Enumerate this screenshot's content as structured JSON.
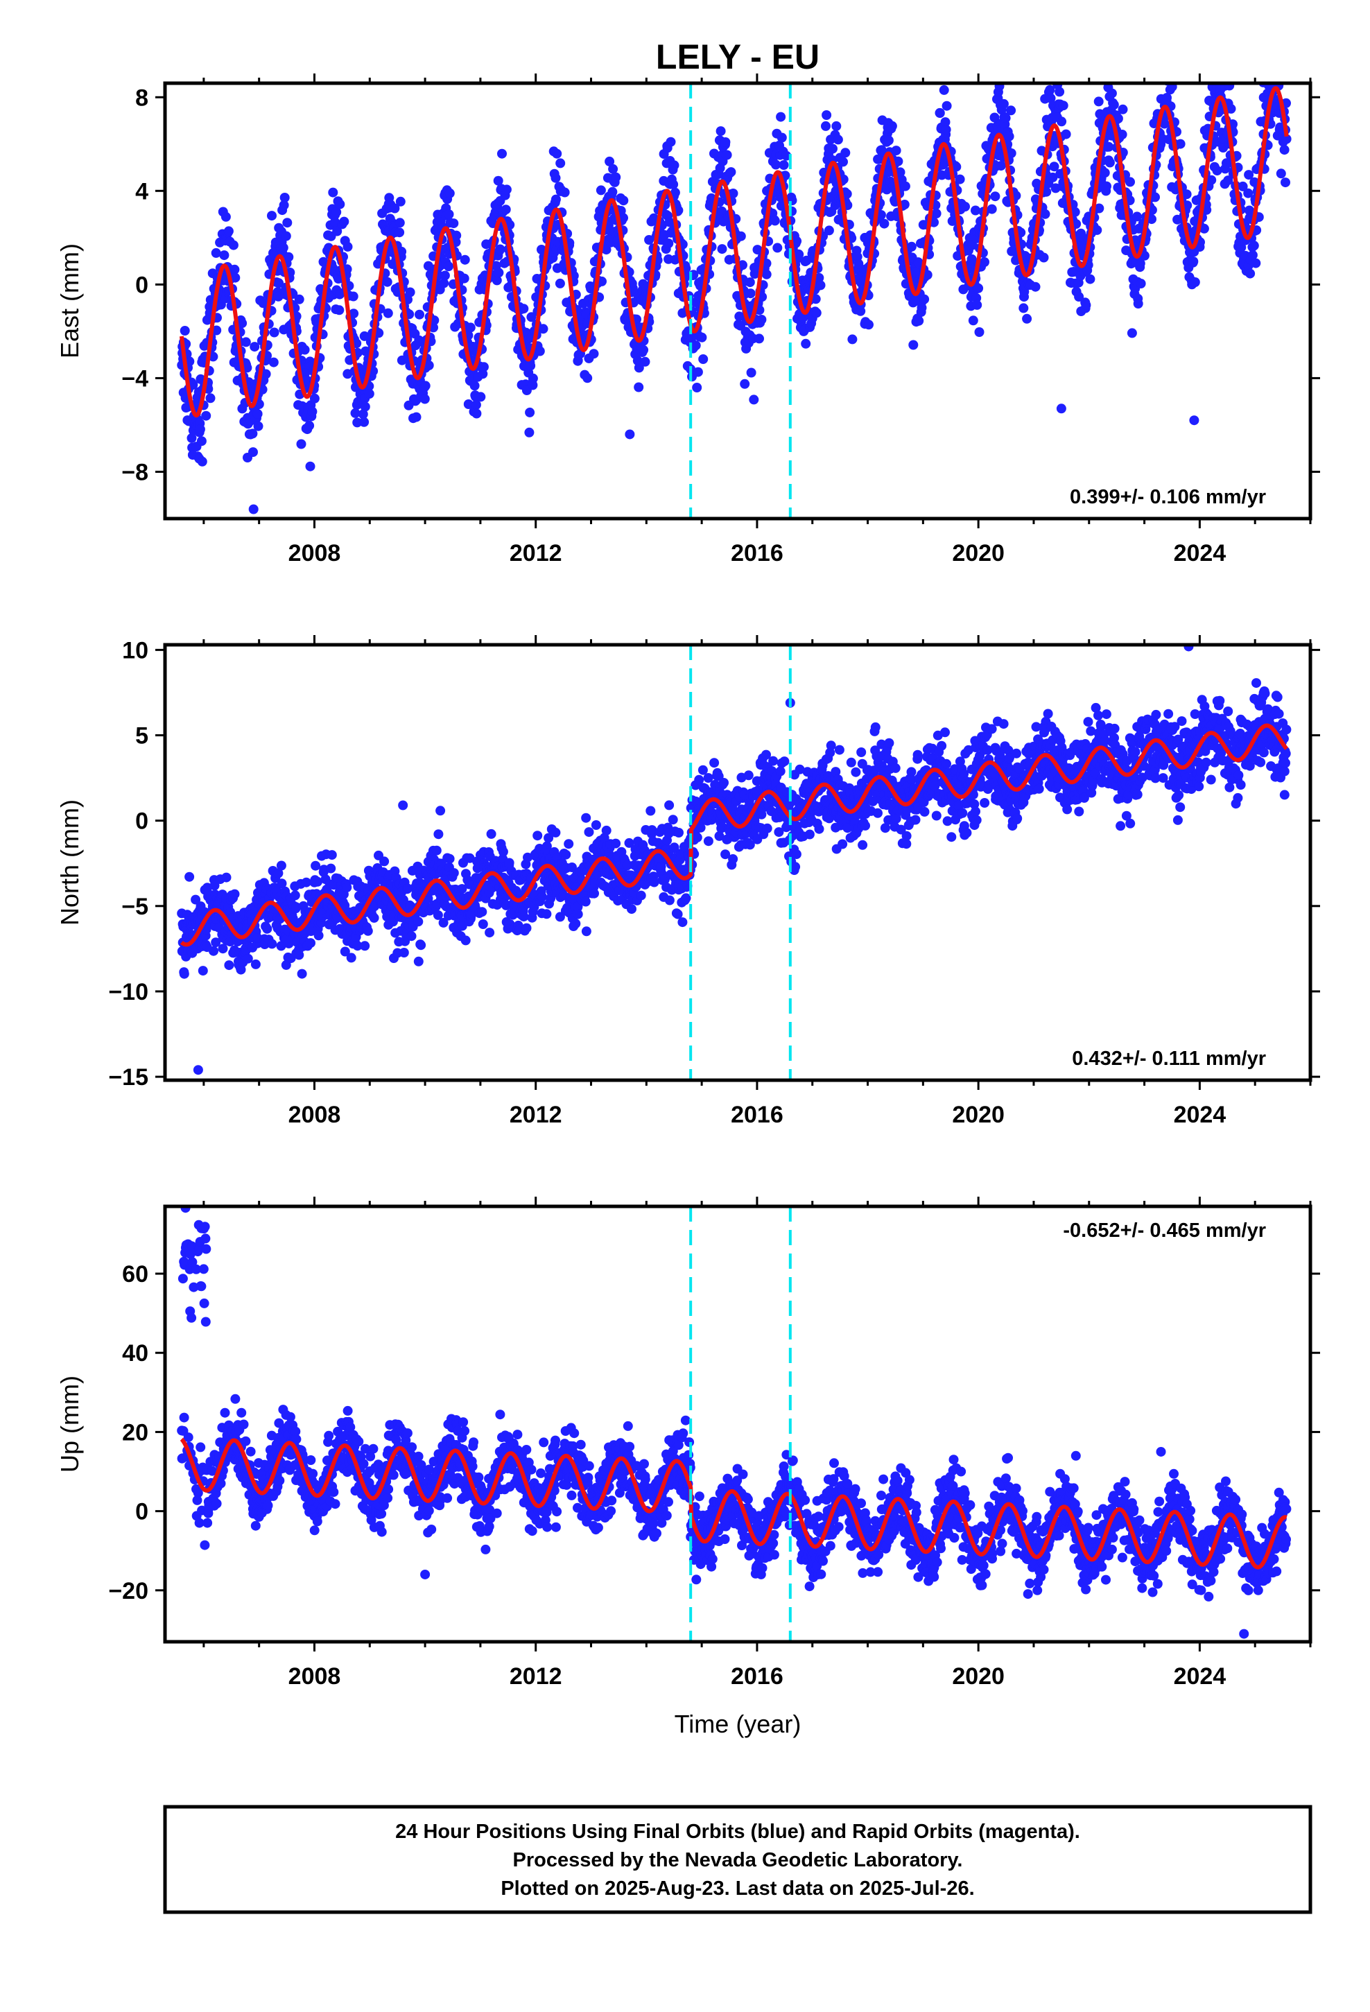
{
  "title": "LELY - EU",
  "caption": {
    "lines": [
      "24 Hour Positions Using Final Orbits (blue) and Rapid Orbits (magenta).",
      "Processed by the Nevada Geodetic Laboratory.",
      "Plotted on 2025-Aug-23. Last data on 2025-Jul-26."
    ]
  },
  "colors": {
    "data_points": "#1f1fff",
    "model_line": "#ee1111",
    "event_lines": "#00e5f0",
    "frame": "#000000"
  },
  "chart_data": [
    {
      "type": "scatter",
      "component": "east",
      "ylabel": "East (mm)",
      "xlabel": "",
      "xlim": [
        2005.3,
        2026.0
      ],
      "ylim": [
        -10,
        8.6
      ],
      "xticks": [
        2008,
        2012,
        2016,
        2020,
        2024
      ],
      "xtick_labels": [
        "2008",
        "2012",
        "2016",
        "2020",
        "2024"
      ],
      "yticks": [
        -8,
        -4,
        0,
        4,
        8
      ],
      "ytick_labels": [
        "−8",
        "−4",
        "0",
        "4",
        "8"
      ],
      "rate": "0.399+/- 0.106 mm/yr",
      "rate_position": "bottom-right",
      "event_lines_x": [
        2014.8,
        2016.6
      ],
      "data_start": 2005.6,
      "data_end": 2025.57,
      "model": {
        "offset": -2.6,
        "slope": 0.399,
        "slope_ref_year": 2005.6,
        "amp": 3.1,
        "phase_year": 2006.37,
        "steps": []
      },
      "scatter": {
        "sigma": 1.1,
        "samples_per_year": 140
      },
      "outliers": [
        {
          "x": 2006.9,
          "y": -9.6
        },
        {
          "x": 2023.9,
          "y": -5.8
        },
        {
          "x": 2021.5,
          "y": -5.3
        },
        {
          "x": 2013.7,
          "y": -6.4
        }
      ]
    },
    {
      "type": "scatter",
      "component": "north",
      "ylabel": "North (mm)",
      "xlabel": "",
      "xlim": [
        2005.3,
        2026.0
      ],
      "ylim": [
        -15.2,
        10.3
      ],
      "xticks": [
        2008,
        2012,
        2016,
        2020,
        2024
      ],
      "xtick_labels": [
        "2008",
        "2012",
        "2016",
        "2020",
        "2024"
      ],
      "yticks": [
        -15,
        -10,
        -5,
        0,
        5,
        10
      ],
      "ytick_labels": [
        "−15",
        "−10",
        "−5",
        "0",
        "5",
        "10"
      ],
      "rate": "0.432+/- 0.111 mm/yr",
      "rate_position": "bottom-right",
      "event_lines_x": [
        2014.8,
        2016.6
      ],
      "data_start": 2005.6,
      "data_end": 2025.57,
      "model": {
        "offset": -6.4,
        "slope": 0.432,
        "slope_ref_year": 2005.6,
        "amp": 0.9,
        "phase_year": 2006.2,
        "steps": [
          {
            "x": 2014.8,
            "dy": 2.6
          }
        ]
      },
      "scatter": {
        "sigma": 1.1,
        "samples_per_year": 140
      },
      "outliers": [
        {
          "x": 2005.9,
          "y": -14.6
        },
        {
          "x": 2016.6,
          "y": 6.9
        },
        {
          "x": 2009.6,
          "y": 0.9
        },
        {
          "x": 2023.8,
          "y": 10.2
        }
      ]
    },
    {
      "type": "scatter",
      "component": "up",
      "ylabel": "Up (mm)",
      "xlabel": "Time (year)",
      "xlim": [
        2005.3,
        2026.0
      ],
      "ylim": [
        -33,
        77
      ],
      "xticks": [
        2008,
        2012,
        2016,
        2020,
        2024
      ],
      "xtick_labels": [
        "2008",
        "2012",
        "2016",
        "2020",
        "2024"
      ],
      "yticks": [
        -20,
        0,
        20,
        40,
        60
      ],
      "ytick_labels": [
        "−20",
        "0",
        "20",
        "40",
        "60"
      ],
      "rate": "-0.652+/- 0.465 mm/yr",
      "rate_position": "top-right",
      "event_lines_x": [
        2014.8,
        2016.6
      ],
      "data_start": 2005.6,
      "data_end": 2025.57,
      "model": {
        "offset": 12.0,
        "slope": -0.652,
        "slope_ref_year": 2005.6,
        "amp": 6.5,
        "phase_year": 2006.55,
        "steps": [
          {
            "x": 2014.8,
            "dy": -7.0
          }
        ]
      },
      "scatter": {
        "sigma": 4.2,
        "samples_per_year": 140
      },
      "early_cluster": {
        "x_from": 2005.6,
        "x_to": 2006.05,
        "y_center": 62,
        "y_spread": 7
      },
      "outliers": [
        {
          "x": 2024.8,
          "y": -31
        },
        {
          "x": 2023.3,
          "y": 15
        },
        {
          "x": 2010.0,
          "y": -16
        }
      ]
    }
  ]
}
